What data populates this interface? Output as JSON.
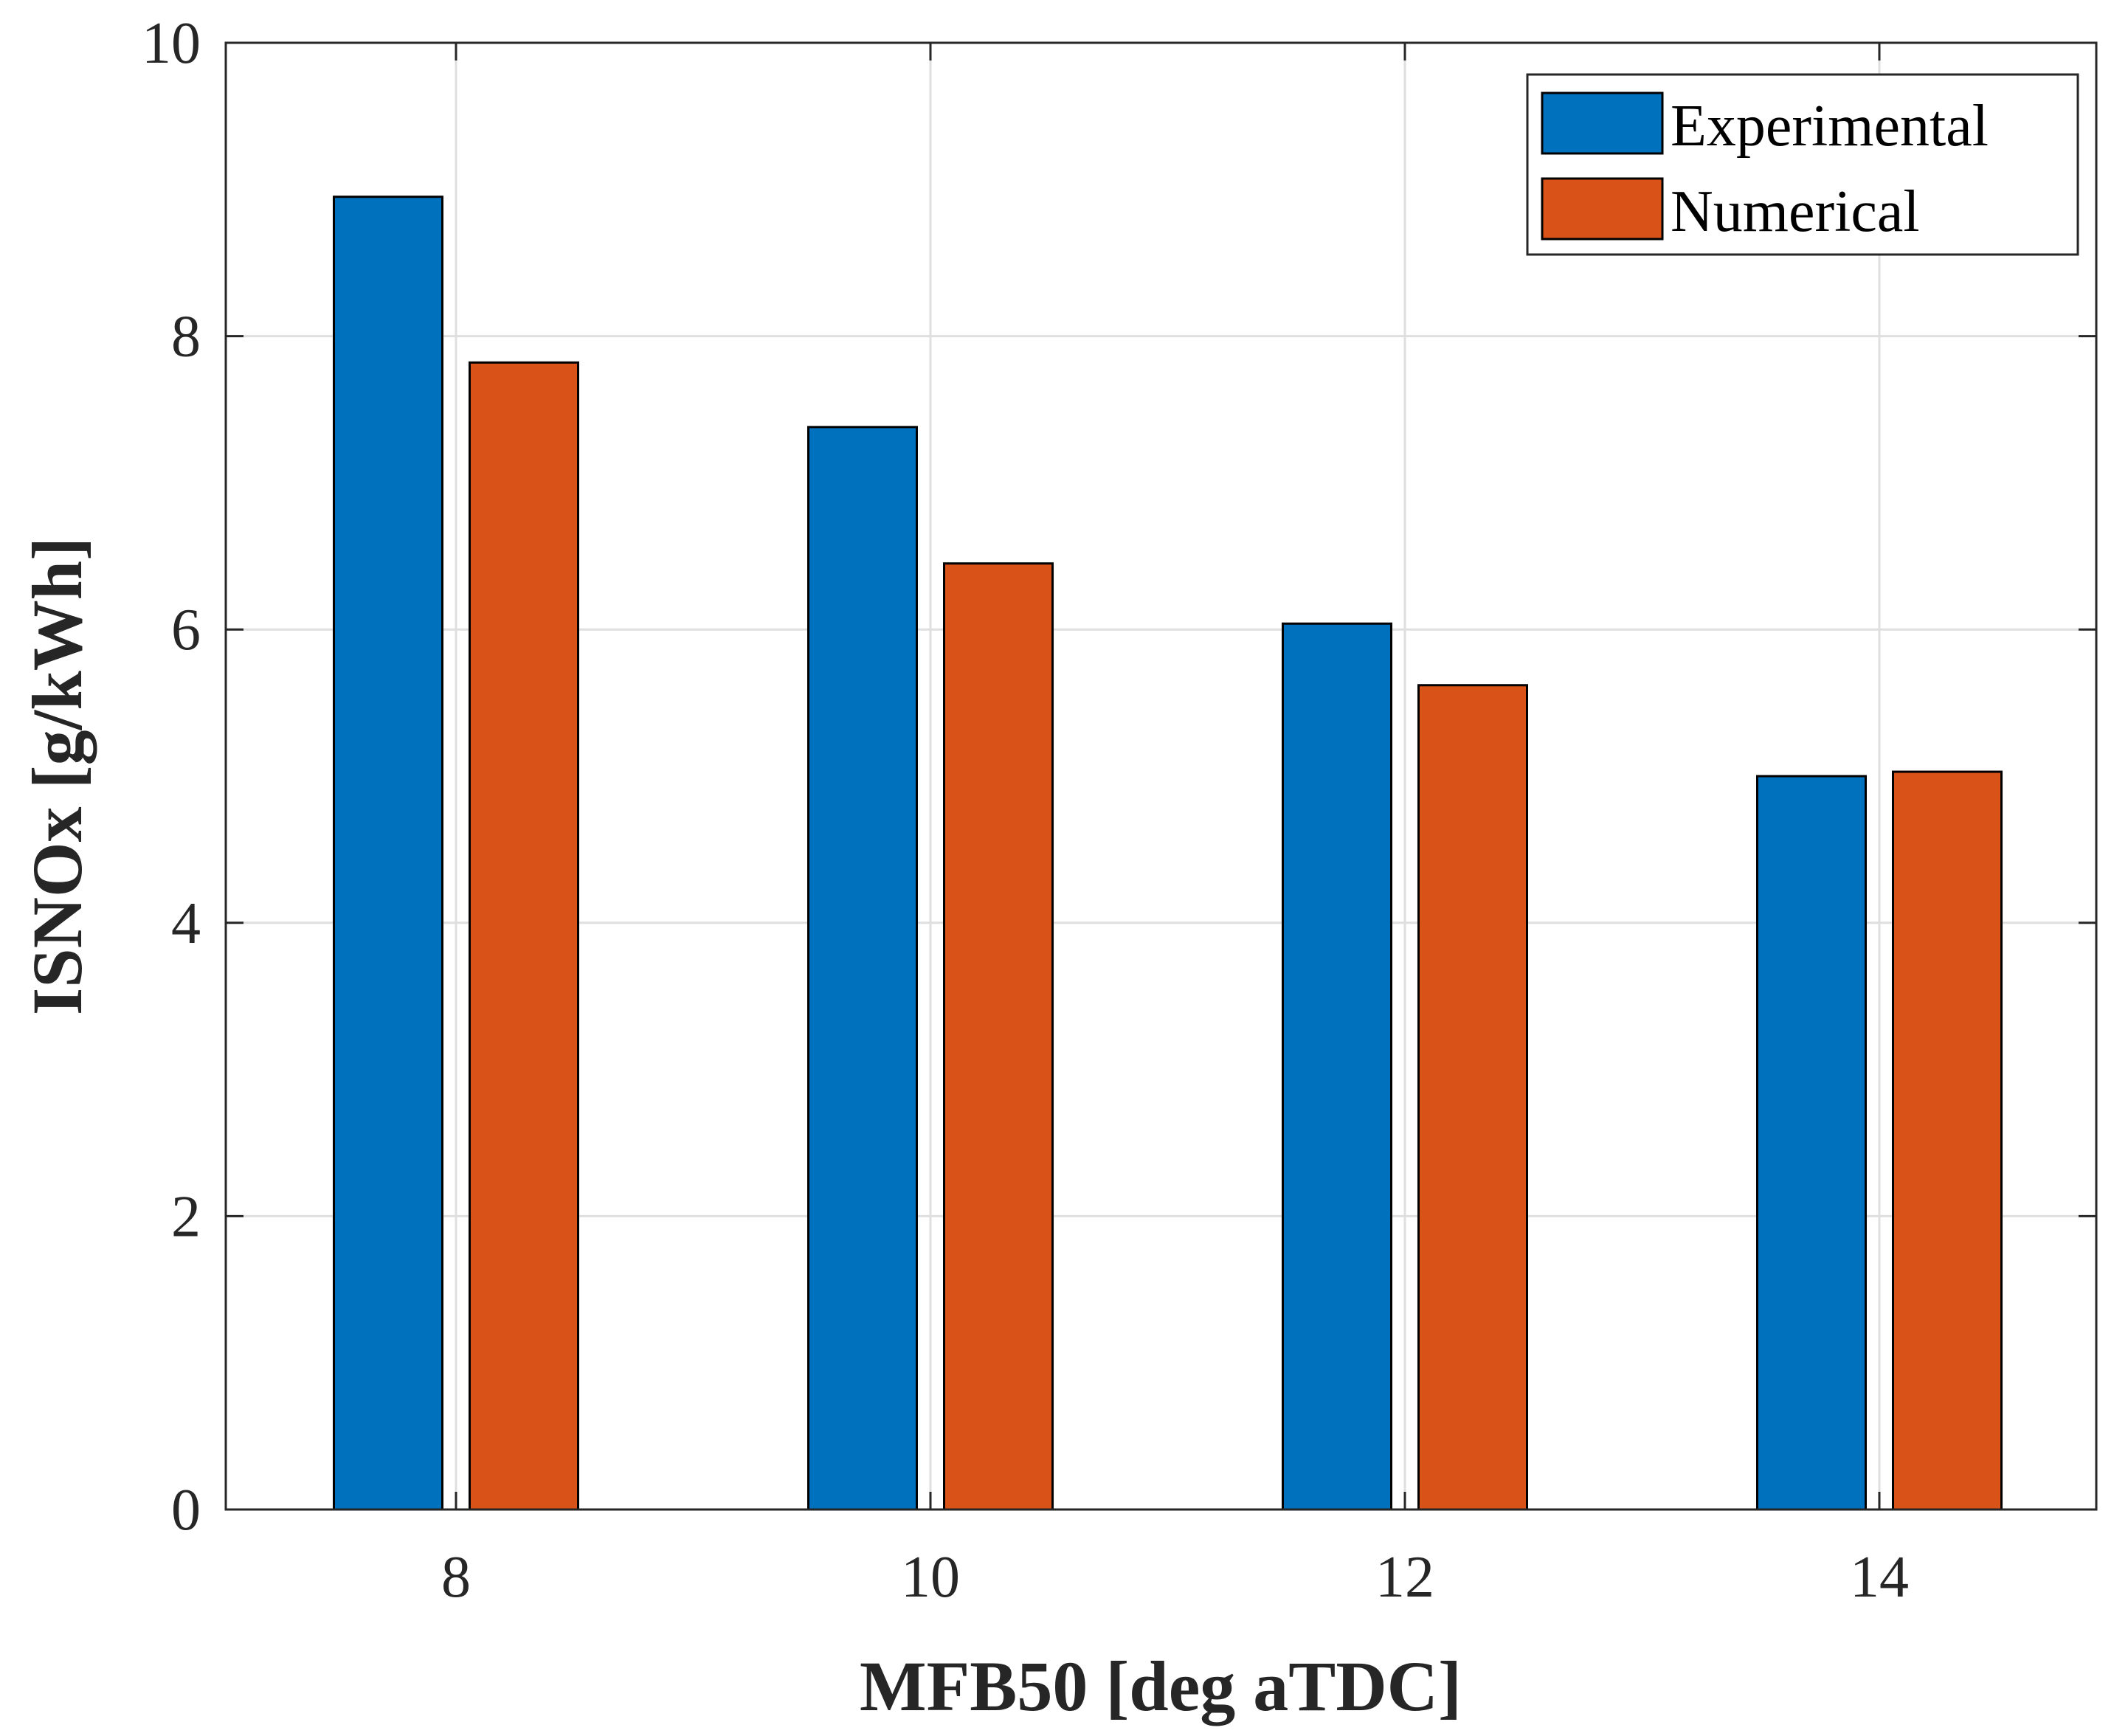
{
  "chart_data": {
    "type": "bar",
    "title": "",
    "xlabel": "MFB50 [deg aTDC]",
    "ylabel": "ISNOx [g/kWh]",
    "categories": [
      "8",
      "10",
      "12",
      "14"
    ],
    "series": [
      {
        "name": "Experimental",
        "color": "#0072BD",
        "values": [
          8.95,
          7.38,
          6.04,
          5.0
        ]
      },
      {
        "name": "Numerical",
        "color": "#D95319",
        "values": [
          7.82,
          6.45,
          5.62,
          5.03
        ]
      }
    ],
    "ylim": [
      0,
      10
    ],
    "yticks": [
      "0",
      "2",
      "4",
      "6",
      "8",
      "10"
    ],
    "grid": true,
    "legend_position": "top-right"
  }
}
